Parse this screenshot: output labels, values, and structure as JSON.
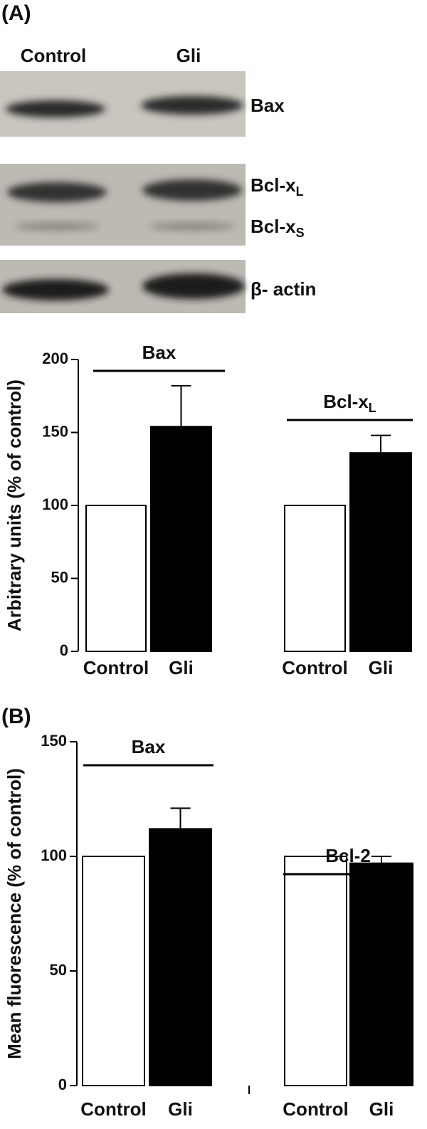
{
  "panel_labels": [
    "(A)",
    "(B)"
  ],
  "blot": {
    "lanes": [
      "Control",
      "Gli"
    ],
    "bands": [
      {
        "label": "Bax"
      },
      {
        "label": "Bcl-x",
        "subscript": "L"
      },
      {
        "label": "Bcl-x",
        "subscript": "S"
      },
      {
        "label": "β- actin"
      }
    ]
  },
  "chart_data": [
    {
      "type": "bar",
      "y_label": "Arbitrary units (% of control)",
      "categories": [
        "Control",
        "Gli",
        "Control",
        "Gli"
      ],
      "values": [
        100,
        154,
        100,
        136
      ],
      "errors": [
        0,
        28,
        0,
        12
      ],
      "colors": [
        "#ffffff",
        "#000000",
        "#ffffff",
        "#000000"
      ],
      "groups": [
        {
          "label": "Bax"
        },
        {
          "label": "Bcl-x",
          "subscript": "L"
        }
      ],
      "ylim": [
        0,
        200
      ],
      "yticks": [
        0,
        50,
        100,
        150,
        200
      ]
    },
    {
      "type": "bar",
      "y_label": "Mean fluorescence (% of control)",
      "categories": [
        "Control",
        "Gli",
        "Control",
        "Gli"
      ],
      "values": [
        100,
        112,
        100,
        97
      ],
      "errors": [
        0,
        9,
        0,
        3
      ],
      "colors": [
        "#ffffff",
        "#000000",
        "#ffffff",
        "#000000"
      ],
      "groups": [
        {
          "label": "Bax"
        },
        {
          "label": "Bcl-2"
        }
      ],
      "ylim": [
        0,
        150
      ],
      "yticks": [
        0,
        50,
        100,
        150
      ]
    }
  ]
}
